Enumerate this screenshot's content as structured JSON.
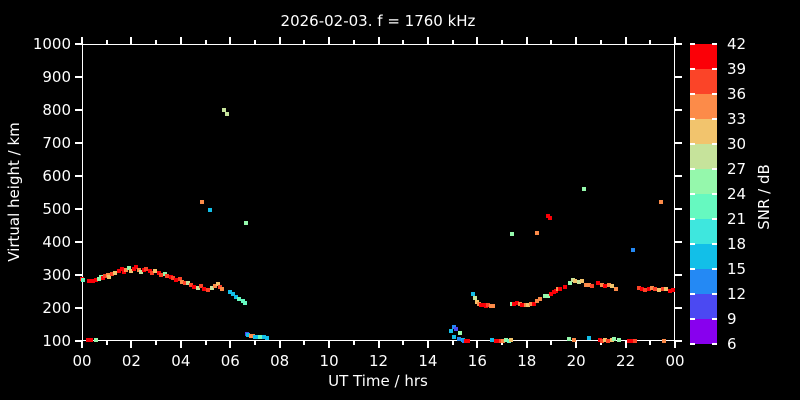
{
  "frame": {
    "background": "#000000",
    "axis_color": "#ffffff",
    "text_color": "#ffffff"
  },
  "chart_data": {
    "type": "scatter",
    "title": "2026-02-03. f = 1760 kHz",
    "xlabel": "UT Time / hrs",
    "ylabel": "Virtual height / km",
    "xlim": [
      0,
      24
    ],
    "ylim": [
      100,
      1000
    ],
    "grid": false,
    "x_tick_labels": [
      "00",
      "02",
      "04",
      "06",
      "08",
      "10",
      "12",
      "14",
      "16",
      "18",
      "20",
      "22",
      "00"
    ],
    "x_tick_values": [
      0,
      2,
      4,
      6,
      8,
      10,
      12,
      14,
      16,
      18,
      20,
      22,
      24
    ],
    "x_minor_tick_values": [
      1,
      3,
      5,
      7,
      9,
      11,
      13,
      15,
      17,
      19,
      21,
      23
    ],
    "y_tick_labels": [
      "100",
      "200",
      "300",
      "400",
      "500",
      "600",
      "700",
      "800",
      "900",
      "1000"
    ],
    "y_tick_values": [
      100,
      200,
      300,
      400,
      500,
      600,
      700,
      800,
      900,
      1000
    ],
    "colorbar": {
      "label": "SNR / dB",
      "min": 6,
      "max": 42,
      "step": 3,
      "tick_labels": [
        "42",
        "39",
        "36",
        "33",
        "30",
        "27",
        "24",
        "21",
        "18",
        "15",
        "12",
        "9",
        "6"
      ],
      "palette_low_to_high": [
        "#8800EE",
        "#4B49F2",
        "#2489F4",
        "#12BFE8",
        "#3EE7DE",
        "#66F9C0",
        "#95F8AC",
        "#C6E39B",
        "#F2C46D",
        "#FC8B49",
        "#FB4428",
        "#FB0007"
      ]
    },
    "points_format": [
      "ut_hours",
      "virtual_height_km",
      "snr_db"
    ],
    "points": [
      [
        0.25,
        102,
        40
      ],
      [
        0.35,
        102,
        40
      ],
      [
        0.57,
        103,
        25
      ],
      [
        0.0,
        289,
        40
      ],
      [
        0.05,
        284,
        22
      ],
      [
        0.3,
        281,
        40
      ],
      [
        0.45,
        282,
        40
      ],
      [
        0.55,
        285,
        40
      ],
      [
        0.7,
        288,
        25
      ],
      [
        0.78,
        295,
        25
      ],
      [
        0.85,
        291,
        40
      ],
      [
        0.95,
        297,
        37
      ],
      [
        1.05,
        301,
        34
      ],
      [
        1.1,
        295,
        31
      ],
      [
        1.2,
        303,
        37
      ],
      [
        1.35,
        306,
        31
      ],
      [
        1.5,
        313,
        40
      ],
      [
        1.6,
        318,
        40
      ],
      [
        1.7,
        310,
        40
      ],
      [
        1.8,
        315,
        34
      ],
      [
        1.9,
        320,
        25
      ],
      [
        2.0,
        312,
        31
      ],
      [
        2.1,
        317,
        40
      ],
      [
        2.2,
        323,
        40
      ],
      [
        2.3,
        316,
        34
      ],
      [
        2.4,
        309,
        28
      ],
      [
        2.5,
        315,
        40
      ],
      [
        2.6,
        319,
        37
      ],
      [
        2.75,
        313,
        40
      ],
      [
        2.85,
        307,
        37
      ],
      [
        2.95,
        312,
        31
      ],
      [
        3.1,
        307,
        40
      ],
      [
        3.2,
        300,
        37
      ],
      [
        3.35,
        304,
        25
      ],
      [
        3.45,
        297,
        37
      ],
      [
        3.6,
        294,
        40
      ],
      [
        3.7,
        290,
        37
      ],
      [
        3.8,
        285,
        40
      ],
      [
        3.95,
        287,
        37
      ],
      [
        4.05,
        280,
        34
      ],
      [
        4.15,
        275,
        37
      ],
      [
        4.3,
        277,
        28
      ],
      [
        4.4,
        270,
        37
      ],
      [
        4.55,
        265,
        40
      ],
      [
        4.7,
        262,
        28
      ],
      [
        4.8,
        266,
        37
      ],
      [
        4.95,
        258,
        40
      ],
      [
        5.1,
        255,
        37
      ],
      [
        5.25,
        260,
        28
      ],
      [
        5.4,
        268,
        34
      ],
      [
        5.5,
        273,
        31
      ],
      [
        5.6,
        264,
        37
      ],
      [
        5.68,
        259,
        34
      ],
      [
        6.0,
        248,
        16
      ],
      [
        6.1,
        241,
        16
      ],
      [
        6.22,
        233,
        16
      ],
      [
        6.35,
        227,
        22
      ],
      [
        6.5,
        221,
        22
      ],
      [
        6.6,
        216,
        22
      ],
      [
        6.68,
        120,
        10
      ],
      [
        6.73,
        117,
        16
      ],
      [
        6.82,
        114,
        34
      ],
      [
        6.92,
        115,
        34
      ],
      [
        7.0,
        112,
        16
      ],
      [
        7.1,
        113,
        16
      ],
      [
        7.2,
        111,
        22
      ],
      [
        7.35,
        112,
        16
      ],
      [
        7.5,
        110,
        16
      ],
      [
        4.85,
        520,
        34
      ],
      [
        5.2,
        497,
        16
      ],
      [
        5.75,
        800,
        28
      ],
      [
        5.85,
        788,
        28
      ],
      [
        6.62,
        458,
        25
      ],
      [
        14.95,
        130,
        16
      ],
      [
        15.05,
        142,
        12
      ],
      [
        15.07,
        112,
        16
      ],
      [
        15.15,
        136,
        10
      ],
      [
        15.27,
        106,
        12
      ],
      [
        15.31,
        124,
        25
      ],
      [
        15.4,
        103,
        16
      ],
      [
        15.47,
        100,
        12
      ],
      [
        15.55,
        101,
        40
      ],
      [
        15.63,
        100,
        40
      ],
      [
        15.84,
        242,
        16
      ],
      [
        15.9,
        229,
        28
      ],
      [
        15.97,
        219,
        31
      ],
      [
        16.05,
        213,
        34
      ],
      [
        16.15,
        210,
        40
      ],
      [
        16.25,
        208,
        40
      ],
      [
        16.35,
        206,
        40
      ],
      [
        16.45,
        209,
        37
      ],
      [
        16.55,
        207,
        34
      ],
      [
        16.62,
        206,
        34
      ],
      [
        17.42,
        212,
        25
      ],
      [
        17.5,
        211,
        40
      ],
      [
        17.62,
        214,
        40
      ],
      [
        17.72,
        212,
        34
      ],
      [
        17.82,
        210,
        40
      ],
      [
        17.95,
        209,
        34
      ],
      [
        18.05,
        209,
        31
      ],
      [
        18.18,
        211,
        34
      ],
      [
        18.3,
        212,
        40
      ],
      [
        18.42,
        220,
        34
      ],
      [
        18.55,
        226,
        34
      ],
      [
        18.75,
        235,
        25
      ],
      [
        18.85,
        237,
        25
      ],
      [
        19.0,
        242,
        40
      ],
      [
        19.1,
        247,
        40
      ],
      [
        19.2,
        253,
        40
      ],
      [
        19.25,
        257,
        34
      ],
      [
        19.35,
        257,
        40
      ],
      [
        19.55,
        265,
        40
      ],
      [
        19.75,
        276,
        25
      ],
      [
        19.88,
        284,
        28
      ],
      [
        19.97,
        281,
        31
      ],
      [
        20.1,
        279,
        28
      ],
      [
        20.22,
        281,
        31
      ],
      [
        20.38,
        271,
        34
      ],
      [
        20.5,
        270,
        34
      ],
      [
        20.65,
        268,
        37
      ],
      [
        20.88,
        275,
        40
      ],
      [
        21.05,
        271,
        34
      ],
      [
        21.18,
        267,
        40
      ],
      [
        21.32,
        271,
        34
      ],
      [
        21.45,
        268,
        31
      ],
      [
        21.6,
        258,
        34
      ],
      [
        22.55,
        262,
        37
      ],
      [
        22.68,
        258,
        40
      ],
      [
        22.8,
        256,
        37
      ],
      [
        22.95,
        258,
        40
      ],
      [
        23.08,
        260,
        34
      ],
      [
        23.2,
        257,
        37
      ],
      [
        23.35,
        255,
        31
      ],
      [
        23.5,
        257,
        37
      ],
      [
        23.65,
        257,
        31
      ],
      [
        23.78,
        252,
        40
      ],
      [
        23.9,
        255,
        40
      ],
      [
        16.6,
        103,
        16
      ],
      [
        16.77,
        101,
        40
      ],
      [
        16.85,
        100,
        40
      ],
      [
        16.95,
        100,
        37
      ],
      [
        17.05,
        101,
        34
      ],
      [
        17.15,
        102,
        25
      ],
      [
        17.28,
        101,
        22
      ],
      [
        17.38,
        103,
        31
      ],
      [
        19.72,
        105,
        25
      ],
      [
        19.92,
        104,
        34
      ],
      [
        20.5,
        108,
        16
      ],
      [
        20.95,
        102,
        40
      ],
      [
        21.05,
        100,
        37
      ],
      [
        21.15,
        103,
        31
      ],
      [
        21.3,
        101,
        37
      ],
      [
        21.45,
        104,
        31
      ],
      [
        21.55,
        105,
        25
      ],
      [
        21.74,
        103,
        25
      ],
      [
        22.14,
        100,
        40
      ],
      [
        22.26,
        100,
        40
      ],
      [
        22.4,
        101,
        37
      ],
      [
        23.56,
        100,
        34
      ],
      [
        17.42,
        424,
        25
      ],
      [
        18.42,
        427,
        34
      ],
      [
        18.88,
        480,
        40
      ],
      [
        18.95,
        472,
        40
      ],
      [
        20.3,
        560,
        25
      ],
      [
        22.32,
        375,
        13
      ],
      [
        23.42,
        520,
        34
      ]
    ]
  }
}
